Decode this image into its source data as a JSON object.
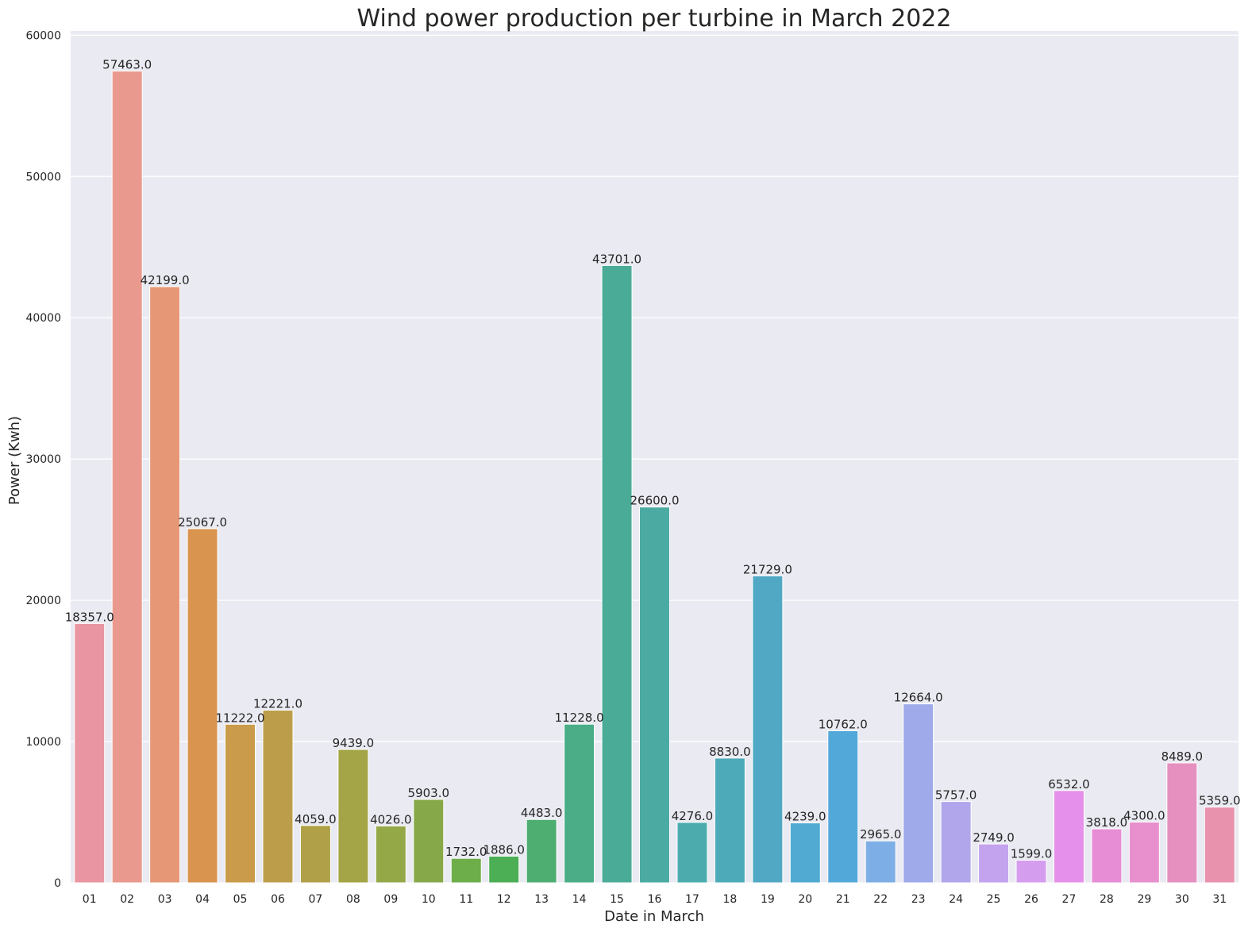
{
  "chart_data": {
    "type": "bar",
    "title": "Wind power production per turbine in March 2022",
    "xlabel": "Date in March",
    "ylabel": "Power (Kwh)",
    "ylim": [
      0,
      60300
    ],
    "yticks": [
      0,
      10000,
      20000,
      30000,
      40000,
      50000,
      60000
    ],
    "grid": true,
    "background": "#eaeaf2",
    "categories": [
      "01",
      "02",
      "03",
      "04",
      "05",
      "06",
      "07",
      "08",
      "09",
      "10",
      "11",
      "12",
      "13",
      "14",
      "15",
      "16",
      "17",
      "18",
      "19",
      "20",
      "21",
      "22",
      "23",
      "24",
      "25",
      "26",
      "27",
      "28",
      "29",
      "30",
      "31"
    ],
    "values": [
      18357,
      57463,
      42199,
      25067,
      11222,
      12221,
      4059,
      9439,
      4026,
      5903,
      1732,
      1886,
      4483,
      11228,
      43701,
      26600,
      4276,
      8830,
      21729,
      4239,
      10762,
      2965,
      12664,
      5757,
      2749,
      1599,
      6532,
      3818,
      4300,
      8489,
      5359
    ],
    "data_labels": [
      "18357.0",
      "57463.0",
      "42199.0",
      "25067.0",
      "11222.0",
      "12221.0",
      "4059.0",
      "9439.0",
      "4026.0",
      "5903.0",
      "1732.0",
      "1886.0",
      "4483.0",
      "11228.0",
      "43701.0",
      "26600.0",
      "4276.0",
      "8830.0",
      "21729.0",
      "4239.0",
      "10762.0",
      "2965.0",
      "12664.0",
      "5757.0",
      "2749.0",
      "1599.0",
      "6532.0",
      "3818.0",
      "4300.0",
      "8489.0",
      "5359.0"
    ],
    "colors": [
      "#ea96a2",
      "#e9998d",
      "#e69876",
      "#d99450",
      "#c99b4a",
      "#bc9e4a",
      "#b0a148",
      "#a3a546",
      "#95a848",
      "#86a849",
      "#6dad4a",
      "#4cae55",
      "#4ead71",
      "#4aad87",
      "#4aab97",
      "#4baba2",
      "#4cacad",
      "#4daab8",
      "#51a8c4",
      "#51aad1",
      "#53a8da",
      "#7eaee6",
      "#9eaaea",
      "#b1a6ec",
      "#c3a2ee",
      "#d49ded",
      "#e590ea",
      "#e78dd6",
      "#e890cd",
      "#e690c0",
      "#e892ad"
    ]
  }
}
